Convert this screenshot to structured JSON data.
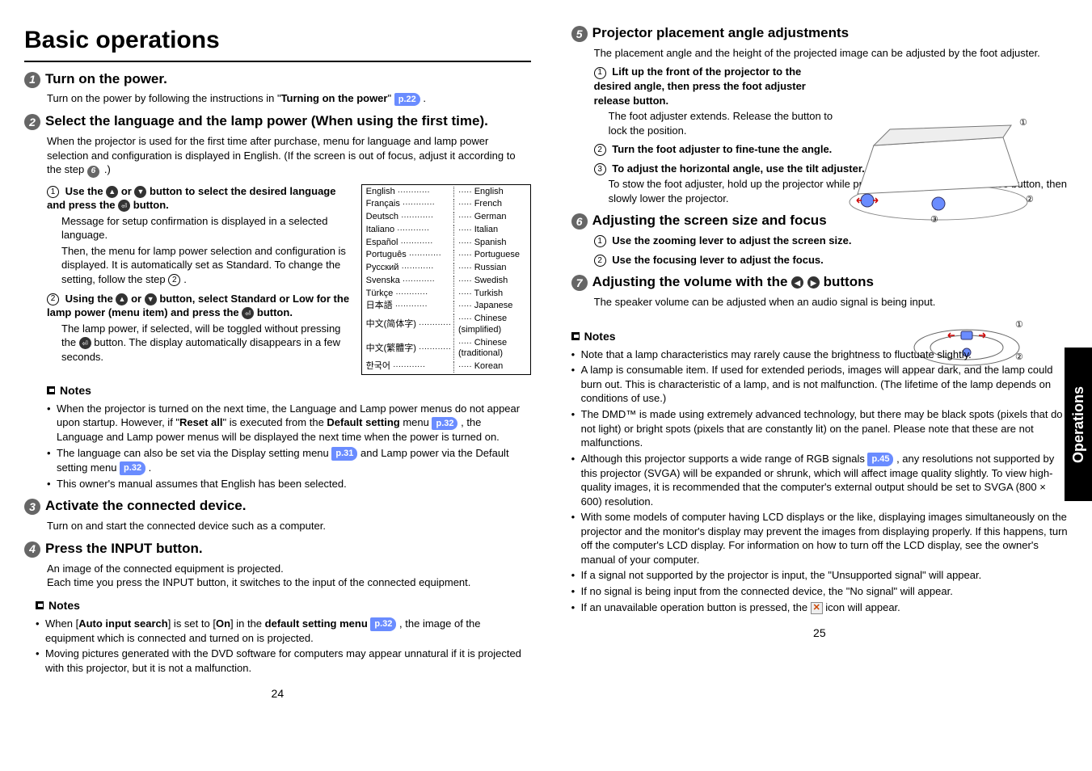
{
  "main_title": "Basic operations",
  "side_tab": "Operations",
  "page_left": "24",
  "page_right": "25",
  "left": {
    "s1": {
      "title": "Turn on the power.",
      "body_pre": "Turn on the power by following the instructions in \"",
      "body_bold": "Turning on the power",
      "body_post": "\" ",
      "pref": "p.22",
      "tail": " ."
    },
    "s2": {
      "title": "Select the language and the lamp power (When using the first time).",
      "intro": "When the projector is used for the first time after purchase, menu for language and lamp power selection and configuration is displayed in English. (If the screen is out of focus, adjust it according to the step ",
      "intro_step": "6",
      "intro_tail": ".)",
      "sub1_bold": "Use the  △  or  ▽  button to select the desired language and press the  ⏎  button.",
      "sub1_bold_a": "Use the ",
      "sub1_bold_b": " or ",
      "sub1_bold_c": " button to select the desired language and press the ",
      "sub1_bold_d": " button.",
      "sub1_p1": "Message for setup confirmation is displayed in a selected language.",
      "sub1_p2a": "Then, the menu for lamp power selection and configuration is displayed. It is automatically set as Standard. To change the setting, follow the step ",
      "sub1_p2_step": "2",
      "sub1_p2_tail": ".",
      "sub2_bold_a": "Using the ",
      "sub2_bold_b": " or ",
      "sub2_bold_c": " button, select Standard or Low for the lamp power (menu item) and press the ",
      "sub2_bold_d": " button.",
      "sub2_p1": "The lamp power, if selected, will be toggled without pressing the ",
      "sub2_p1b": " button. The display automatically disappears in a few seconds."
    },
    "lang_rows": [
      [
        "English",
        "English"
      ],
      [
        "Français",
        "French"
      ],
      [
        "Deutsch",
        "German"
      ],
      [
        "Italiano",
        "Italian"
      ],
      [
        "Español",
        "Spanish"
      ],
      [
        "Português",
        "Portuguese"
      ],
      [
        "Русский",
        "Russian"
      ],
      [
        "Svenska",
        "Swedish"
      ],
      [
        "Türkçe",
        "Turkish"
      ],
      [
        "日本語",
        "Japanese"
      ],
      [
        "中文(简体字)",
        "Chinese (simplified)"
      ],
      [
        "中文(繁體字)",
        "Chinese (traditional)"
      ],
      [
        "한국어",
        "Korean"
      ]
    ],
    "notes_title": "Notes",
    "notes1": [
      {
        "pre": "When the projector is turned on the next time, the Language and Lamp power menus do not appear upon startup. However, if \"",
        "b1": "Reset all",
        "mid1": "\" is executed from the ",
        "b2": "Default setting",
        "mid2": " menu ",
        "pref": "p.32",
        "tail": " , the Language and Lamp power menus will be displayed the next time when the power is turned on."
      },
      {
        "pre": "The language can also be set via the Display setting menu ",
        "pref1": "p.31",
        "mid": " and Lamp power via the Default setting menu ",
        "pref2": "p.32",
        "tail": " ."
      },
      {
        "pre": "This owner's manual assumes that English has been selected."
      }
    ],
    "s3": {
      "title": "Activate the connected device.",
      "body": "Turn on and start the connected device such as a computer."
    },
    "s4": {
      "title": "Press the INPUT button.",
      "p1": "An image of the connected equipment is projected.",
      "p2": "Each time you press the INPUT button, it switches to the input of the connected equipment."
    },
    "notes2_title": "Notes",
    "notes2": [
      {
        "pre": "When [",
        "b1": "Auto input search",
        "mid1": "] is set to [",
        "b2": "On",
        "mid2": "] in the ",
        "b3": "default setting menu",
        "sp": " ",
        "pref": "p.32",
        "tail": " , the image of the equipment which is connected and turned on is projected."
      },
      {
        "pre": "Moving pictures generated with the DVD software for computers may appear unnatural if it is projected with this projector, but it is not a malfunction."
      }
    ]
  },
  "right": {
    "s5": {
      "title": "Projector placement angle adjustments",
      "intro": "The placement angle and the height of the projected image can be adjusted by the foot adjuster.",
      "i1_bold": "Lift up the front of the projector to the desired angle, then press the foot adjuster release button.",
      "i1_body": "The foot adjuster extends. Release the button to lock the position.",
      "i2_bold": "Turn the foot adjuster to fine-tune the angle.",
      "i3_bold": "To adjust the horizontal angle, use the tilt adjuster.",
      "stow": "To stow the foot adjuster, hold up the projector while pressing the foot adjuster release button, then slowly lower the projector."
    },
    "s6": {
      "title": "Adjusting the screen size and focus",
      "i1": "Use the zooming lever to adjust the screen size.",
      "i2": "Use the focusing lever to adjust the focus."
    },
    "s7": {
      "title_a": "Adjusting the volume with the ",
      "title_b": " buttons",
      "body": "The speaker volume can be adjusted when an audio signal is being input."
    },
    "notes_title": "Notes",
    "notes": [
      "Note that a lamp characteristics may rarely cause the brightness to fluctuate slightly.",
      "A lamp is consumable item. If used for extended periods, images will appear dark, and the lamp could burn out.  This is characteristic of a lamp, and is not malfunction. (The lifetime of the lamp depends on conditions of use.)",
      "The DMD™ is made using extremely advanced technology, but there may be black spots (pixels that do not light) or bright spots (pixels that are constantly lit) on the panel.  Please note that these are not malfunctions."
    ],
    "note_rgb_pre": "Although this projector supports a wide range of RGB signals ",
    "note_rgb_pref": "p.45",
    "note_rgb_post": " , any resolutions not supported by this projector (SVGA) will be expanded or shrunk, which will affect image quality slightly. To view high-quality images, it is recommended that the computer's external output should be set to SVGA (800 × 600) resolution.",
    "notes_tail": [
      "With some models of computer having LCD displays or the like, displaying images simultaneously on the projector and the monitor's display may prevent the images from displaying properly. If this happens, turn off the computer's LCD display. For information on how to turn off the LCD display, see the owner's manual of your computer.",
      "If a signal not supported by the projector is input, the \"Unsupported signal\" will appear.",
      "If no signal is being input from the connected device, the \"No signal\" will appear."
    ],
    "note_x_pre": "If an unavailable operation button is pressed, the ",
    "note_x_post": " icon will appear."
  }
}
